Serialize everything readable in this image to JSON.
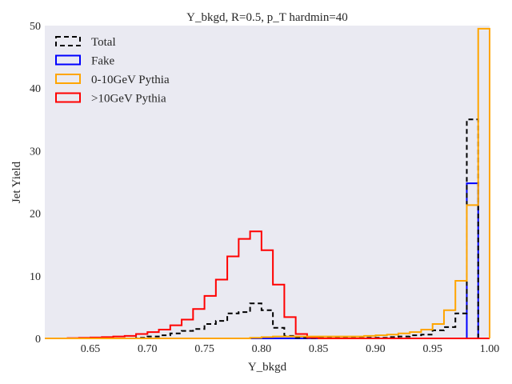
{
  "chart_data": {
    "type": "histogram",
    "title": "Y_bkgd, R=0.5, p_T hardmin=40",
    "xlabel": "Y_bkgd",
    "ylabel": "Jet Yield",
    "xlim": [
      0.61,
      1.0
    ],
    "ylim": [
      0,
      50
    ],
    "xticks": [
      0.65,
      0.7,
      0.75,
      0.8,
      0.85,
      0.9,
      0.95,
      1.0
    ],
    "xtick_labels": [
      "0.65",
      "0.70",
      "0.75",
      "0.80",
      "0.85",
      "0.90",
      "0.95",
      "1.00"
    ],
    "yticks": [
      0,
      10,
      20,
      30,
      40,
      50
    ],
    "ytick_labels": [
      "0",
      "10",
      "20",
      "30",
      "40",
      "50"
    ],
    "grid": false,
    "background": "#eaeaf2",
    "legend_position": "top-left",
    "bin_edges": [
      0.61,
      0.62,
      0.63,
      0.64,
      0.65,
      0.66,
      0.67,
      0.68,
      0.69,
      0.7,
      0.71,
      0.72,
      0.73,
      0.74,
      0.75,
      0.76,
      0.77,
      0.78,
      0.79,
      0.8,
      0.81,
      0.82,
      0.83,
      0.84,
      0.85,
      0.86,
      0.87,
      0.88,
      0.89,
      0.9,
      0.91,
      0.92,
      0.93,
      0.94,
      0.95,
      0.96,
      0.97,
      0.98,
      0.99,
      1.0
    ],
    "series": [
      {
        "name": "Total",
        "color": "#000000",
        "style": "dashed",
        "values": [
          0,
          0,
          0,
          0,
          0,
          0,
          0,
          0,
          0.1,
          0.3,
          0.5,
          0.8,
          1.2,
          1.5,
          2.3,
          2.8,
          4.0,
          4.2,
          5.6,
          4.5,
          1.7,
          0.4,
          0.1,
          0.05,
          0.05,
          0.05,
          0.05,
          0.05,
          0.1,
          0.1,
          0.2,
          0.3,
          0.5,
          0.6,
          1.3,
          1.8,
          4.0,
          35.0,
          0
        ]
      },
      {
        "name": "Fake",
        "color": "#0000ff",
        "style": "solid",
        "values": [
          0,
          0,
          0,
          0,
          0,
          0,
          0,
          0,
          0,
          0,
          0,
          0,
          0,
          0,
          0,
          0,
          0,
          0,
          0,
          0,
          0,
          0,
          0,
          0,
          0,
          0,
          0,
          0,
          0,
          0,
          0,
          0,
          0,
          0,
          0,
          0,
          0,
          24.8,
          0
        ]
      },
      {
        "name": "0-10GeV Pythia",
        "color": "#ffa500",
        "style": "solid",
        "values": [
          0,
          0,
          0,
          0,
          0,
          0,
          0,
          0,
          0,
          0,
          0,
          0,
          0,
          0,
          0,
          0,
          0,
          0,
          0.1,
          0.2,
          0.3,
          0.3,
          0.3,
          0.3,
          0.3,
          0.3,
          0.3,
          0.3,
          0.4,
          0.5,
          0.6,
          0.8,
          1.0,
          1.4,
          2.3,
          4.5,
          9.2,
          21.3,
          49.5
        ]
      },
      {
        "name": ">10GeV Pythia",
        "color": "#ff0000",
        "style": "solid",
        "values": [
          0,
          0,
          0.05,
          0.1,
          0.15,
          0.2,
          0.3,
          0.4,
          0.7,
          1.0,
          1.4,
          2.1,
          3.0,
          4.7,
          6.8,
          9.4,
          13.1,
          15.9,
          17.1,
          14.1,
          8.6,
          3.4,
          0.7,
          0.1,
          0,
          0,
          0,
          0,
          0,
          0,
          0,
          0,
          0,
          0,
          0,
          0,
          0,
          0,
          0
        ]
      }
    ]
  }
}
